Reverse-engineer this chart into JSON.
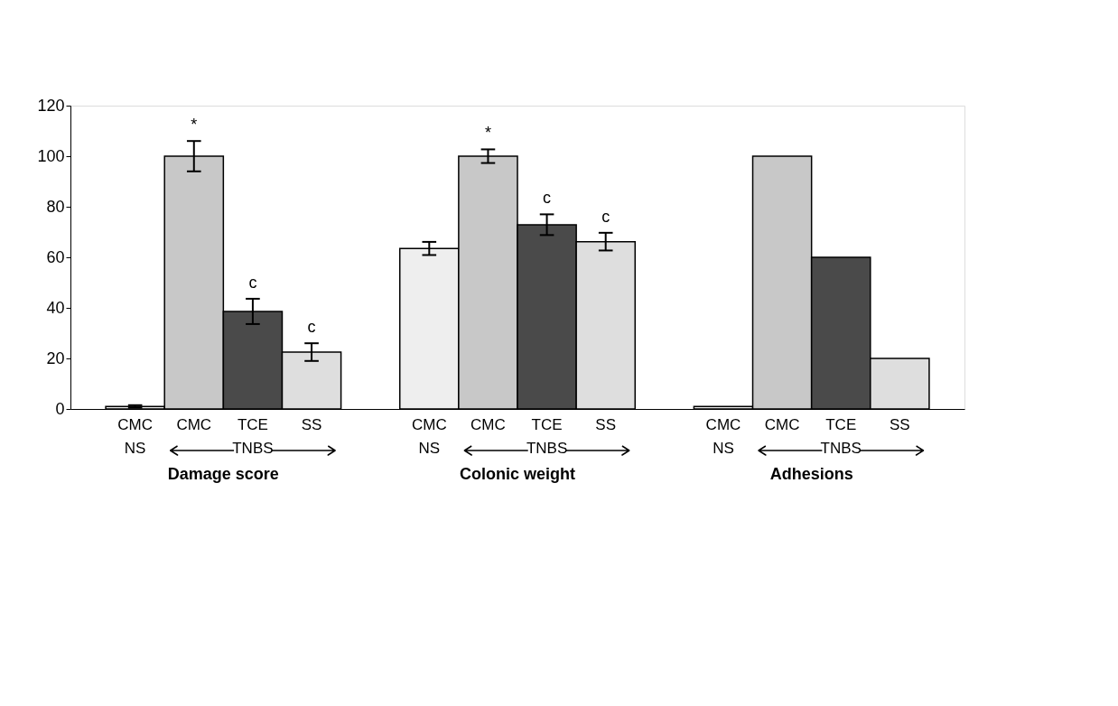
{
  "chart_data": {
    "type": "bar",
    "categories": [
      "Damage score",
      "Colonic weight",
      "Adhesions"
    ],
    "series": [
      {
        "name": "CMC",
        "color": "#eeeeee",
        "values": [
          1,
          63.5,
          1
        ],
        "errors": [
          0.5,
          2.6,
          null
        ]
      },
      {
        "name": "CMC",
        "color": "#c8c8c8",
        "values": [
          100,
          100,
          100
        ],
        "errors": [
          6,
          2.7,
          null
        ],
        "value_labels": [
          "*",
          "*",
          null
        ]
      },
      {
        "name": "TCE",
        "color": "#4a4a4a",
        "values": [
          38.6,
          72.9,
          60
        ],
        "errors": [
          5,
          4.1,
          null
        ],
        "value_labels": [
          "c",
          "c",
          null
        ]
      },
      {
        "name": "SS",
        "color": "#dedede",
        "values": [
          22.5,
          66.2,
          20
        ],
        "errors": [
          3.5,
          3.5,
          null
        ],
        "value_labels": [
          "c",
          "c",
          null
        ]
      }
    ],
    "ylim": [
      0,
      120
    ],
    "yticks": [
      0,
      20,
      40,
      60,
      80,
      100,
      120
    ],
    "grid": false,
    "legend": false,
    "annotations": [
      "NS",
      "TNBS"
    ]
  }
}
